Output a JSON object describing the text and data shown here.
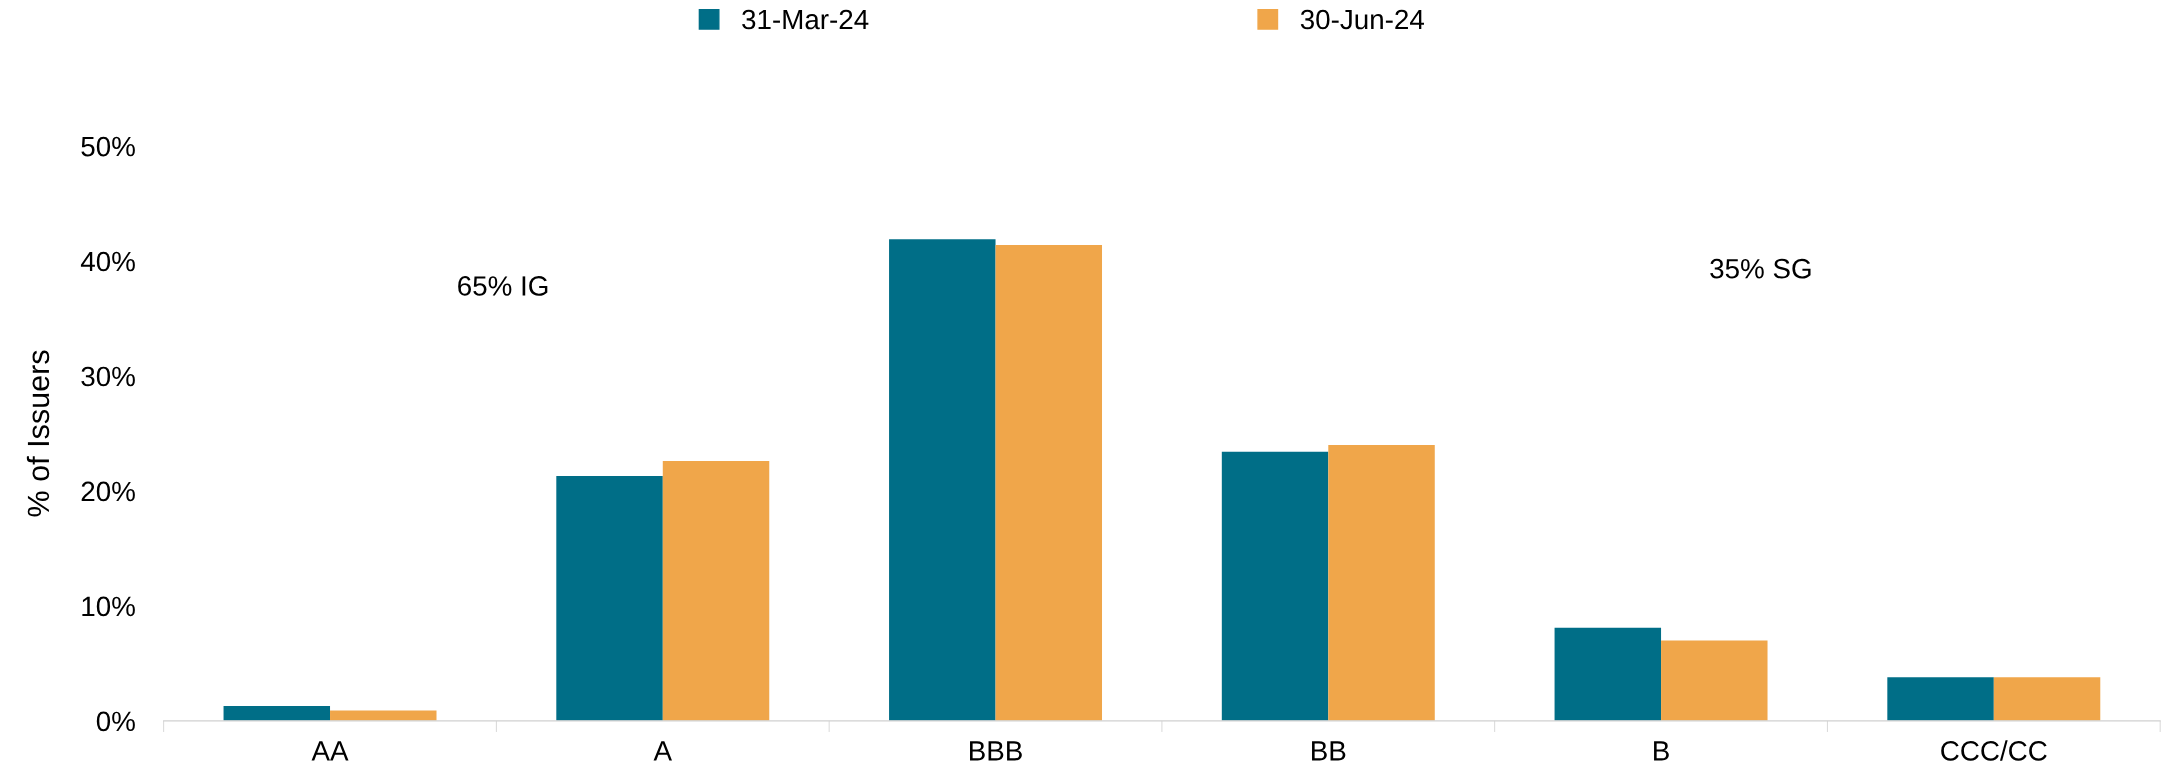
{
  "chart_data": {
    "type": "bar",
    "ylabel": "% of Issuers",
    "categories": [
      "AA",
      "A",
      "BBB",
      "BB",
      "B",
      "CCC/CC"
    ],
    "series": [
      {
        "name": "31-Mar-24",
        "color": "#006e87",
        "values": [
          1.3,
          21.3,
          41.9,
          23.4,
          8.1,
          3.8
        ]
      },
      {
        "name": "30-Jun-24",
        "color": "#f0a64a",
        "values": [
          0.9,
          22.6,
          41.4,
          24.0,
          7.0,
          3.8
        ]
      }
    ],
    "ylim": [
      0,
      50
    ],
    "yticks": [
      {
        "value": 0,
        "label": "0%"
      },
      {
        "value": 10,
        "label": "10%"
      },
      {
        "value": 20,
        "label": "20%"
      },
      {
        "value": 30,
        "label": "30%"
      },
      {
        "value": 40,
        "label": "40%"
      },
      {
        "value": 50,
        "label": "50%"
      }
    ],
    "annotations": [
      "65% IG",
      "35% SG"
    ],
    "grid": false,
    "legend": "top"
  }
}
